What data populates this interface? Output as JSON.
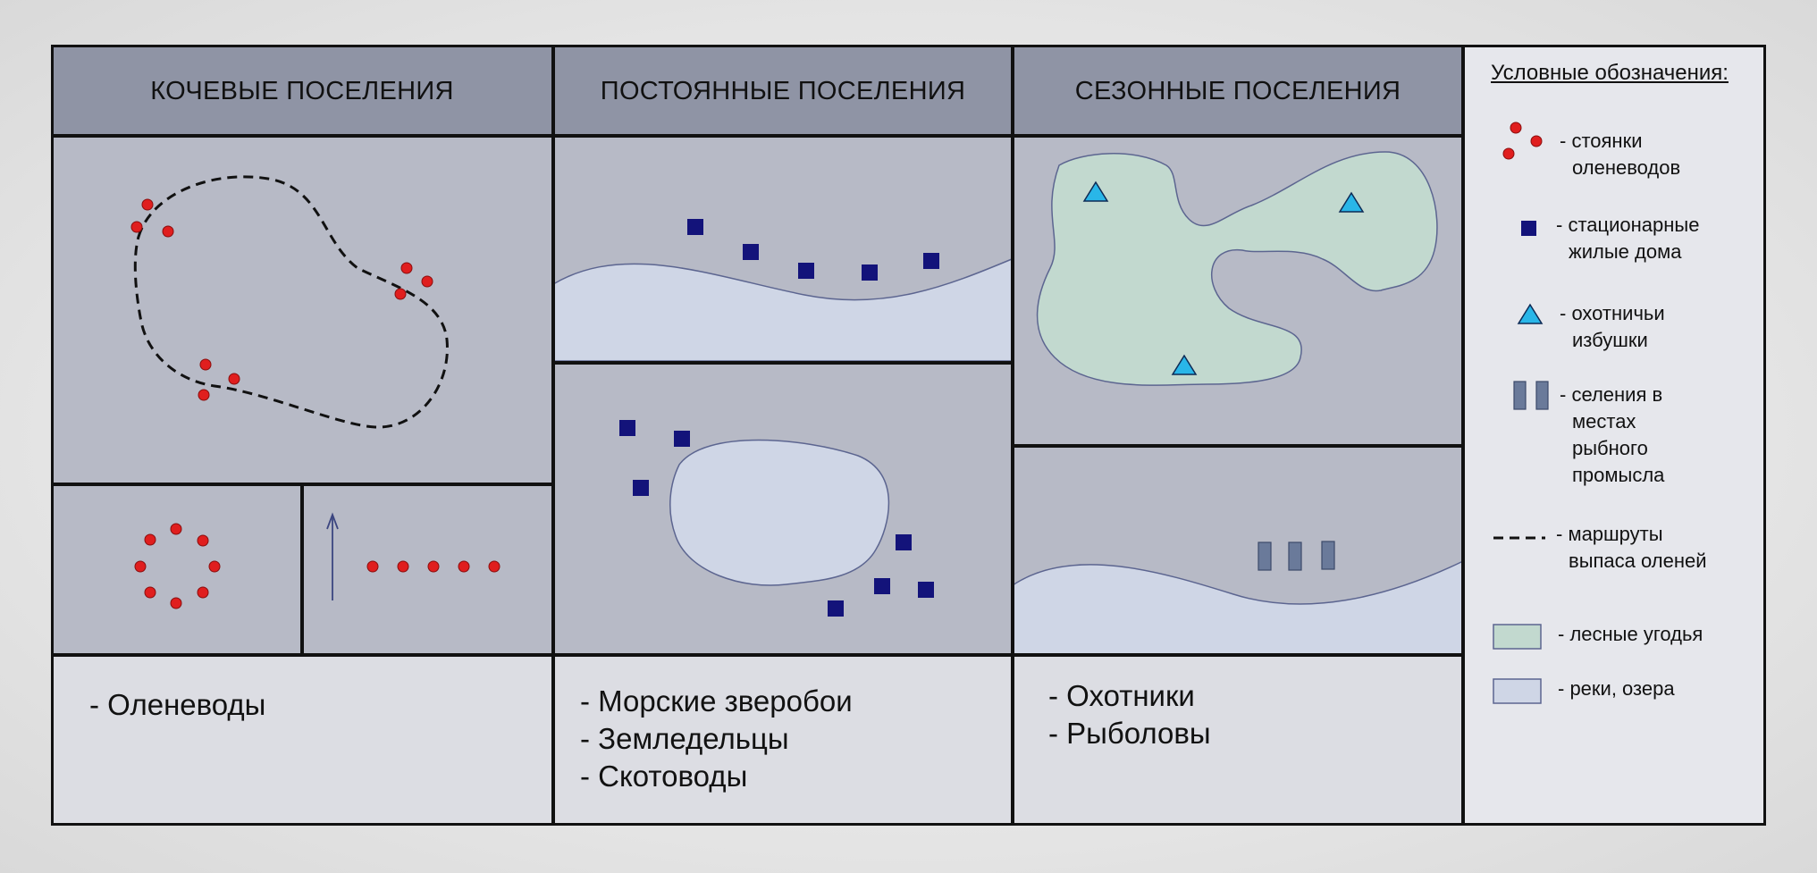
{
  "headers": {
    "nomadic": "КОЧЕВЫЕ ПОСЕЛЕНИЯ",
    "permanent": "ПОСТОЯННЫЕ ПОСЕЛЕНИЯ",
    "seasonal": "СЕЗОННЫЕ ПОСЕЛЕНИЯ"
  },
  "groups": {
    "nomadic": [
      "- Оленеводы"
    ],
    "permanent": [
      "- Морские зверобои",
      "- Земледельцы",
      "- Скотоводы"
    ],
    "seasonal": [
      "- Охотники",
      "- Рыболовы"
    ]
  },
  "legend": {
    "title": "Условные обозначения:",
    "items": [
      {
        "icon": "red-dots-icon",
        "lines": [
          "- стоянки",
          "оленеводов"
        ]
      },
      {
        "icon": "navy-square-icon",
        "lines": [
          "- стационарные",
          "жилые дома"
        ]
      },
      {
        "icon": "cyan-triangle-icon",
        "lines": [
          "- охотничьи",
          "избушки"
        ]
      },
      {
        "icon": "slate-bars-icon",
        "lines": [
          "- селения в",
          "местах",
          "рыбного",
          "промысла"
        ]
      },
      {
        "icon": "dashed-line-icon",
        "lines": [
          "- маршруты",
          "выпаса оленей"
        ]
      },
      {
        "icon": "green-swatch-icon",
        "lines": [
          "- лесные угодья"
        ]
      },
      {
        "icon": "blue-swatch-icon",
        "lines": [
          "- реки, озера"
        ]
      }
    ]
  },
  "colors": {
    "header_bg": "#8f94a5",
    "panel_bg": "#b7bac6",
    "lower_bg": "#dcdde3",
    "legend_bg": "#e6e7ec",
    "camp_red": "#e01e1e",
    "house_navy": "#13137a",
    "hut_cyan": "#29b6e8",
    "forest_green": "#c2d9cf",
    "water_blue": "#cfd6e6",
    "fish_bars": "#6a7a9a"
  }
}
